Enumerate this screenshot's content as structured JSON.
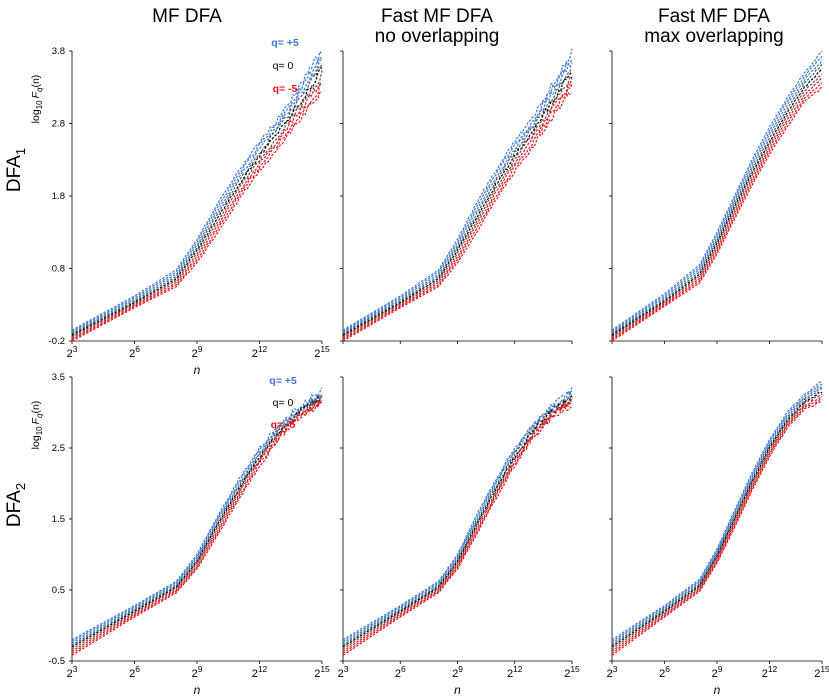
{
  "column_titles": [
    {
      "line1": "MF DFA",
      "line2": ""
    },
    {
      "line1": "Fast MF DFA",
      "line2": "no overlapping"
    },
    {
      "line1": "Fast MF DFA",
      "line2": "max overlapping"
    }
  ],
  "row_labels": [
    {
      "main": "DFA",
      "sub": "1"
    },
    {
      "main": "DFA",
      "sub": "2"
    }
  ],
  "colors": {
    "q_pos": "#3a7bd5",
    "q_zero": "#000000",
    "q_neg": "#e8141b"
  },
  "chart_data": [
    {
      "type": "line",
      "panel": "DFA1 - MF DFA",
      "row": 0,
      "col": 0,
      "title": "MF DFA",
      "xlabel": "n",
      "ylabel": {
        "prefix": "log",
        "sub": "10",
        "italic": "F",
        "isub": "q",
        "suffix": "(n)"
      },
      "x_ticks": [
        {
          "base": "2",
          "exp": "3"
        },
        {
          "base": "2",
          "exp": "6"
        },
        {
          "base": "2",
          "exp": "9"
        },
        {
          "base": "2",
          "exp": "12"
        },
        {
          "base": "2",
          "exp": "15"
        }
      ],
      "xlim": [
        3,
        15
      ],
      "ylim": [
        -0.2,
        3.8
      ],
      "y_ticks": [
        "-0.2",
        "0.8",
        "1.8",
        "2.8",
        "3.8"
      ],
      "legend": [
        {
          "text": "q= +5",
          "color": "#3a7bd5"
        },
        {
          "text": "q= 0",
          "color": "#000000"
        },
        {
          "text": "q= -5",
          "color": "#e8141b"
        }
      ],
      "series": [
        {
          "name": "q= +5",
          "x": [
            3,
            6,
            8,
            9,
            10,
            11,
            12,
            13,
            14,
            15
          ],
          "y": [
            -0.05,
            0.42,
            0.78,
            1.2,
            1.7,
            2.15,
            2.55,
            2.9,
            3.35,
            3.8
          ]
        },
        {
          "name": "q= 0",
          "x": [
            3,
            6,
            8,
            9,
            10,
            11,
            12,
            13,
            14,
            15
          ],
          "y": [
            -0.12,
            0.33,
            0.66,
            1.05,
            1.5,
            1.95,
            2.35,
            2.72,
            3.12,
            3.55
          ]
        },
        {
          "name": "q= -5",
          "x": [
            3,
            6,
            8,
            9,
            10,
            11,
            12,
            13,
            14,
            15
          ],
          "y": [
            -0.2,
            0.26,
            0.55,
            0.88,
            1.3,
            1.75,
            2.15,
            2.5,
            2.9,
            3.25
          ]
        }
      ]
    },
    {
      "type": "line",
      "panel": "DFA1 - Fast MF DFA no overlapping",
      "row": 0,
      "col": 1,
      "title": "Fast MF DFA no overlapping",
      "xlabel": "",
      "x_ticks": [],
      "xlim": [
        3,
        15
      ],
      "ylim": [
        -0.2,
        3.8
      ],
      "y_ticks": [],
      "legend": [],
      "series": [
        {
          "name": "q= +5",
          "x": [
            3,
            6,
            8,
            9,
            10,
            11,
            12,
            13,
            14,
            15
          ],
          "y": [
            -0.05,
            0.42,
            0.78,
            1.2,
            1.7,
            2.15,
            2.55,
            2.9,
            3.35,
            3.8
          ]
        },
        {
          "name": "q= 0",
          "x": [
            3,
            6,
            8,
            9,
            10,
            11,
            12,
            13,
            14,
            15
          ],
          "y": [
            -0.12,
            0.33,
            0.66,
            1.05,
            1.5,
            1.95,
            2.35,
            2.72,
            3.12,
            3.55
          ]
        },
        {
          "name": "q= -5",
          "x": [
            3,
            6,
            8,
            9,
            10,
            11,
            12,
            13,
            14,
            15
          ],
          "y": [
            -0.2,
            0.26,
            0.55,
            0.88,
            1.3,
            1.75,
            2.15,
            2.5,
            2.9,
            3.25
          ]
        }
      ]
    },
    {
      "type": "line",
      "panel": "DFA1 - Fast MF DFA max overlapping",
      "row": 0,
      "col": 2,
      "title": "Fast MF DFA max overlapping",
      "xlabel": "",
      "x_ticks": [],
      "xlim": [
        3,
        15
      ],
      "ylim": [
        -0.2,
        3.8
      ],
      "y_ticks": [],
      "legend": [],
      "series": [
        {
          "name": "q= +5",
          "x": [
            3,
            6,
            8,
            9,
            10,
            11,
            12,
            13,
            14,
            15
          ],
          "y": [
            -0.05,
            0.45,
            0.85,
            1.3,
            1.8,
            2.3,
            2.75,
            3.15,
            3.5,
            3.8
          ]
        },
        {
          "name": "q= 0",
          "x": [
            3,
            6,
            8,
            9,
            10,
            11,
            12,
            13,
            14,
            15
          ],
          "y": [
            -0.12,
            0.35,
            0.72,
            1.15,
            1.65,
            2.12,
            2.55,
            2.95,
            3.3,
            3.55
          ]
        },
        {
          "name": "q= -5",
          "x": [
            3,
            6,
            8,
            9,
            10,
            11,
            12,
            13,
            14,
            15
          ],
          "y": [
            -0.2,
            0.28,
            0.6,
            1.0,
            1.48,
            1.95,
            2.38,
            2.75,
            3.1,
            3.3
          ]
        }
      ]
    },
    {
      "type": "line",
      "panel": "DFA2 - MF DFA",
      "row": 1,
      "col": 0,
      "title": "",
      "xlabel": "n",
      "ylabel": {
        "prefix": "log",
        "sub": "10",
        "italic": "F",
        "isub": "q",
        "suffix": "(n)"
      },
      "x_ticks": [
        {
          "base": "2",
          "exp": "3"
        },
        {
          "base": "2",
          "exp": "6"
        },
        {
          "base": "2",
          "exp": "9"
        },
        {
          "base": "2",
          "exp": "12"
        },
        {
          "base": "2",
          "exp": "15"
        }
      ],
      "xlim": [
        3,
        15
      ],
      "ylim": [
        -0.5,
        3.5
      ],
      "y_ticks": [
        "-0.5",
        "0.5",
        "1.5",
        "2.5",
        "3.5"
      ],
      "legend": [
        {
          "text": "q= +5",
          "color": "#3a7bd5"
        },
        {
          "text": "q= 0",
          "color": "#000000"
        },
        {
          "text": "q= -5",
          "color": "#e8141b"
        }
      ],
      "series": [
        {
          "name": "q= +5",
          "x": [
            3,
            6,
            8,
            9,
            10,
            11,
            12,
            13,
            14,
            15
          ],
          "y": [
            -0.2,
            0.28,
            0.62,
            1.0,
            1.55,
            2.05,
            2.5,
            2.85,
            3.1,
            3.3
          ]
        },
        {
          "name": "q= 0",
          "x": [
            3,
            6,
            8,
            9,
            10,
            11,
            12,
            13,
            14,
            15
          ],
          "y": [
            -0.3,
            0.2,
            0.54,
            0.9,
            1.42,
            1.92,
            2.38,
            2.75,
            3.02,
            3.2
          ]
        },
        {
          "name": "q= -5",
          "x": [
            3,
            6,
            8,
            9,
            10,
            11,
            12,
            13,
            14,
            15
          ],
          "y": [
            -0.42,
            0.12,
            0.46,
            0.8,
            1.28,
            1.78,
            2.25,
            2.65,
            2.95,
            3.12
          ]
        }
      ]
    },
    {
      "type": "line",
      "panel": "DFA2 - Fast MF DFA no overlapping",
      "row": 1,
      "col": 1,
      "title": "",
      "xlabel": "n",
      "x_ticks": [
        {
          "base": "2",
          "exp": "3"
        },
        {
          "base": "2",
          "exp": "6"
        },
        {
          "base": "2",
          "exp": "9"
        },
        {
          "base": "2",
          "exp": "12"
        },
        {
          "base": "2",
          "exp": "15"
        }
      ],
      "xlim": [
        3,
        15
      ],
      "ylim": [
        -0.5,
        3.5
      ],
      "y_ticks": [],
      "legend": [],
      "series": [
        {
          "name": "q= +5",
          "x": [
            3,
            6,
            8,
            9,
            10,
            11,
            12,
            13,
            14,
            15
          ],
          "y": [
            -0.2,
            0.28,
            0.62,
            1.0,
            1.55,
            2.05,
            2.5,
            2.85,
            3.1,
            3.3
          ]
        },
        {
          "name": "q= 0",
          "x": [
            3,
            6,
            8,
            9,
            10,
            11,
            12,
            13,
            14,
            15
          ],
          "y": [
            -0.3,
            0.2,
            0.54,
            0.9,
            1.42,
            1.92,
            2.38,
            2.75,
            3.02,
            3.2
          ]
        },
        {
          "name": "q= -5",
          "x": [
            3,
            6,
            8,
            9,
            10,
            11,
            12,
            13,
            14,
            15
          ],
          "y": [
            -0.42,
            0.12,
            0.46,
            0.8,
            1.28,
            1.78,
            2.25,
            2.65,
            2.95,
            3.12
          ]
        }
      ]
    },
    {
      "type": "line",
      "panel": "DFA2 - Fast MF DFA max overlapping",
      "row": 1,
      "col": 2,
      "title": "",
      "xlabel": "n",
      "x_ticks": [
        {
          "base": "2",
          "exp": "3"
        },
        {
          "base": "2",
          "exp": "6"
        },
        {
          "base": "2",
          "exp": "9"
        },
        {
          "base": "2",
          "exp": "12"
        },
        {
          "base": "2",
          "exp": "15"
        }
      ],
      "xlim": [
        3,
        15
      ],
      "ylim": [
        -0.5,
        3.5
      ],
      "y_ticks": [],
      "legend": [],
      "series": [
        {
          "name": "q= +5",
          "x": [
            3,
            6,
            8,
            9,
            10,
            11,
            12,
            13,
            14,
            15
          ],
          "y": [
            -0.2,
            0.28,
            0.65,
            1.08,
            1.62,
            2.15,
            2.62,
            3.0,
            3.25,
            3.45
          ]
        },
        {
          "name": "q= 0",
          "x": [
            3,
            6,
            8,
            9,
            10,
            11,
            12,
            13,
            14,
            15
          ],
          "y": [
            -0.3,
            0.2,
            0.56,
            0.98,
            1.5,
            2.02,
            2.5,
            2.88,
            3.15,
            3.3
          ]
        },
        {
          "name": "q= -5",
          "x": [
            3,
            6,
            8,
            9,
            10,
            11,
            12,
            13,
            14,
            15
          ],
          "y": [
            -0.42,
            0.12,
            0.48,
            0.88,
            1.38,
            1.9,
            2.38,
            2.78,
            3.05,
            3.15
          ]
        }
      ]
    }
  ]
}
